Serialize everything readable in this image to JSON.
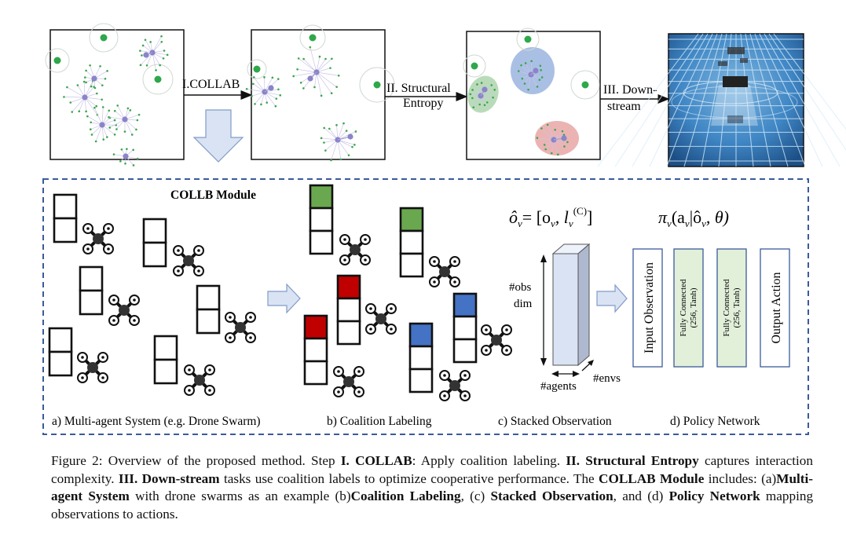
{
  "pipeline": {
    "step1_label": "I.COLLAB",
    "step2_label_line1": "II. Structural",
    "step2_label_line2": "Entropy",
    "step3_label_line1": "III. Down-",
    "step3_label_line2": "stream"
  },
  "module": {
    "title": "COLLB Module",
    "obs_formula_lhs": "ô",
    "obs_formula_rhs": "= [o",
    "obs_formula_mid": ", l",
    "obs_formula_sup": "(C)",
    "obs_formula_end": "]",
    "obs_sub": "v",
    "policy_formula": "π",
    "policy_formula_rest": "(a",
    "policy_formula_bar": "|ô",
    "policy_formula_end": ", θ)",
    "axis_obs_dim_line1": "#obs",
    "axis_obs_dim_line2": "dim",
    "axis_agents": "#agents",
    "axis_envs": "#envs",
    "layer_input": "Input Observation",
    "layer_fc1_line1": "Fully Connected",
    "layer_fc1_line2": "(256, Tanh)",
    "layer_fc2_line1": "Fully Connected",
    "layer_fc2_line2": "(256, Tanh)",
    "layer_output": "Output Action",
    "sub_a": "a) Multi-agent System (e.g. Drone Swarm)",
    "sub_b": "b) Coalition Labeling",
    "sub_c": "c) Stacked Observation",
    "sub_d": "d) Policy Network"
  },
  "caption": {
    "p1": "Figure 2: Overview of the proposed method. Step ",
    "b1": "I. COLLAB",
    "p2": ": Apply coalition labeling. ",
    "b2": "II. Structural Entropy",
    "p3": " captures interaction complexity. ",
    "b3": "III. Down-stream",
    "p4": " tasks use coalition labels to optimize cooperative performance. The ",
    "b4": "COLLAB Module",
    "p5": " includes: (a)",
    "b5": "Multi-agent System",
    "p6": " with drone swarms as an example (b)",
    "b6": "Coalition Labeling",
    "p7": ", (c) ",
    "b7": "Stacked Observation",
    "p8": ", and (d) ",
    "b8": "Policy Network",
    "p9": " mapping observations to actions."
  },
  "colors": {
    "frame_blue": "#3b5a9a",
    "node_purple": "#8a84c8",
    "node_green": "#2ea84a",
    "label_green": "#6aa84f",
    "label_red": "#c00000",
    "label_blue": "#4472c4",
    "cluster_green": "#9ccc9c",
    "cluster_blue": "#8eaadb",
    "cluster_red": "#e69a9a",
    "fc_fill": "#e2efd9",
    "stack_fill": "#dae3f3",
    "arrow_fill": "#dae3f3"
  }
}
